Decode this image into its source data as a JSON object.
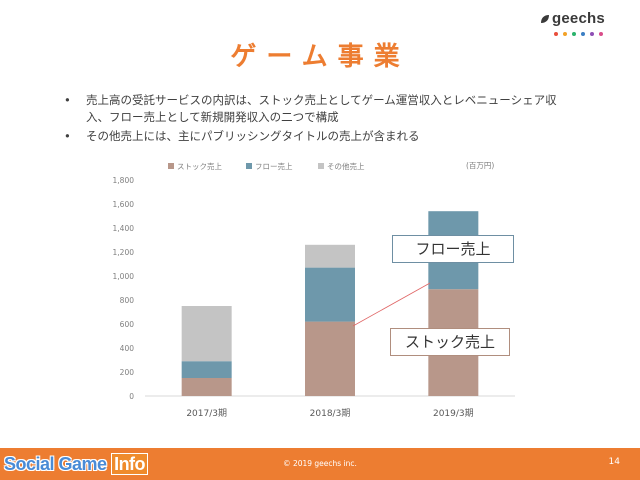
{
  "logo": {
    "text": "geechs",
    "dot_colors": [
      "#e94e3c",
      "#f2a227",
      "#2bb36c",
      "#3c7fc4",
      "#8e4fb5",
      "#d94d8a"
    ]
  },
  "slide": {
    "title": "ゲーム事業",
    "bullets": [
      "売上高の受託サービスの内訳は、ストック売上としてゲーム運営収入とレベニューシェア収入、フロー売上として新規開発収入の二つで構成",
      "その他売上には、主にパブリッシングタイトルの売上が含まれる"
    ],
    "page_number": "14",
    "copyright": "© 2019 geechs inc."
  },
  "callouts": {
    "flow": "フロー売上",
    "stock": "ストック売上"
  },
  "watermark": {
    "part1": "Social Game ",
    "part2": "Info"
  },
  "colors": {
    "accent": "#ed7d31",
    "stock": "#b8978a",
    "flow": "#6e98ab",
    "other": "#c4c4c4"
  },
  "chart_data": {
    "type": "bar",
    "stacked": true,
    "unit_label": "(百万円)",
    "categories": [
      "2017/3期",
      "2018/3期",
      "2019/3期"
    ],
    "series": [
      {
        "name": "ストック売上",
        "color": "#b8978a",
        "values": [
          150,
          620,
          890
        ]
      },
      {
        "name": "フロー売上",
        "color": "#6e98ab",
        "values": [
          140,
          450,
          650
        ]
      },
      {
        "name": "その他売上",
        "color": "#c4c4c4",
        "values": [
          460,
          190,
          0
        ]
      }
    ],
    "ylim": [
      0,
      1800
    ],
    "yticks": [
      "0",
      "200",
      "400",
      "600",
      "800",
      "1,000",
      "1,200",
      "1,400",
      "1,600",
      "1,800"
    ],
    "legend_position": "top",
    "grid": false
  }
}
